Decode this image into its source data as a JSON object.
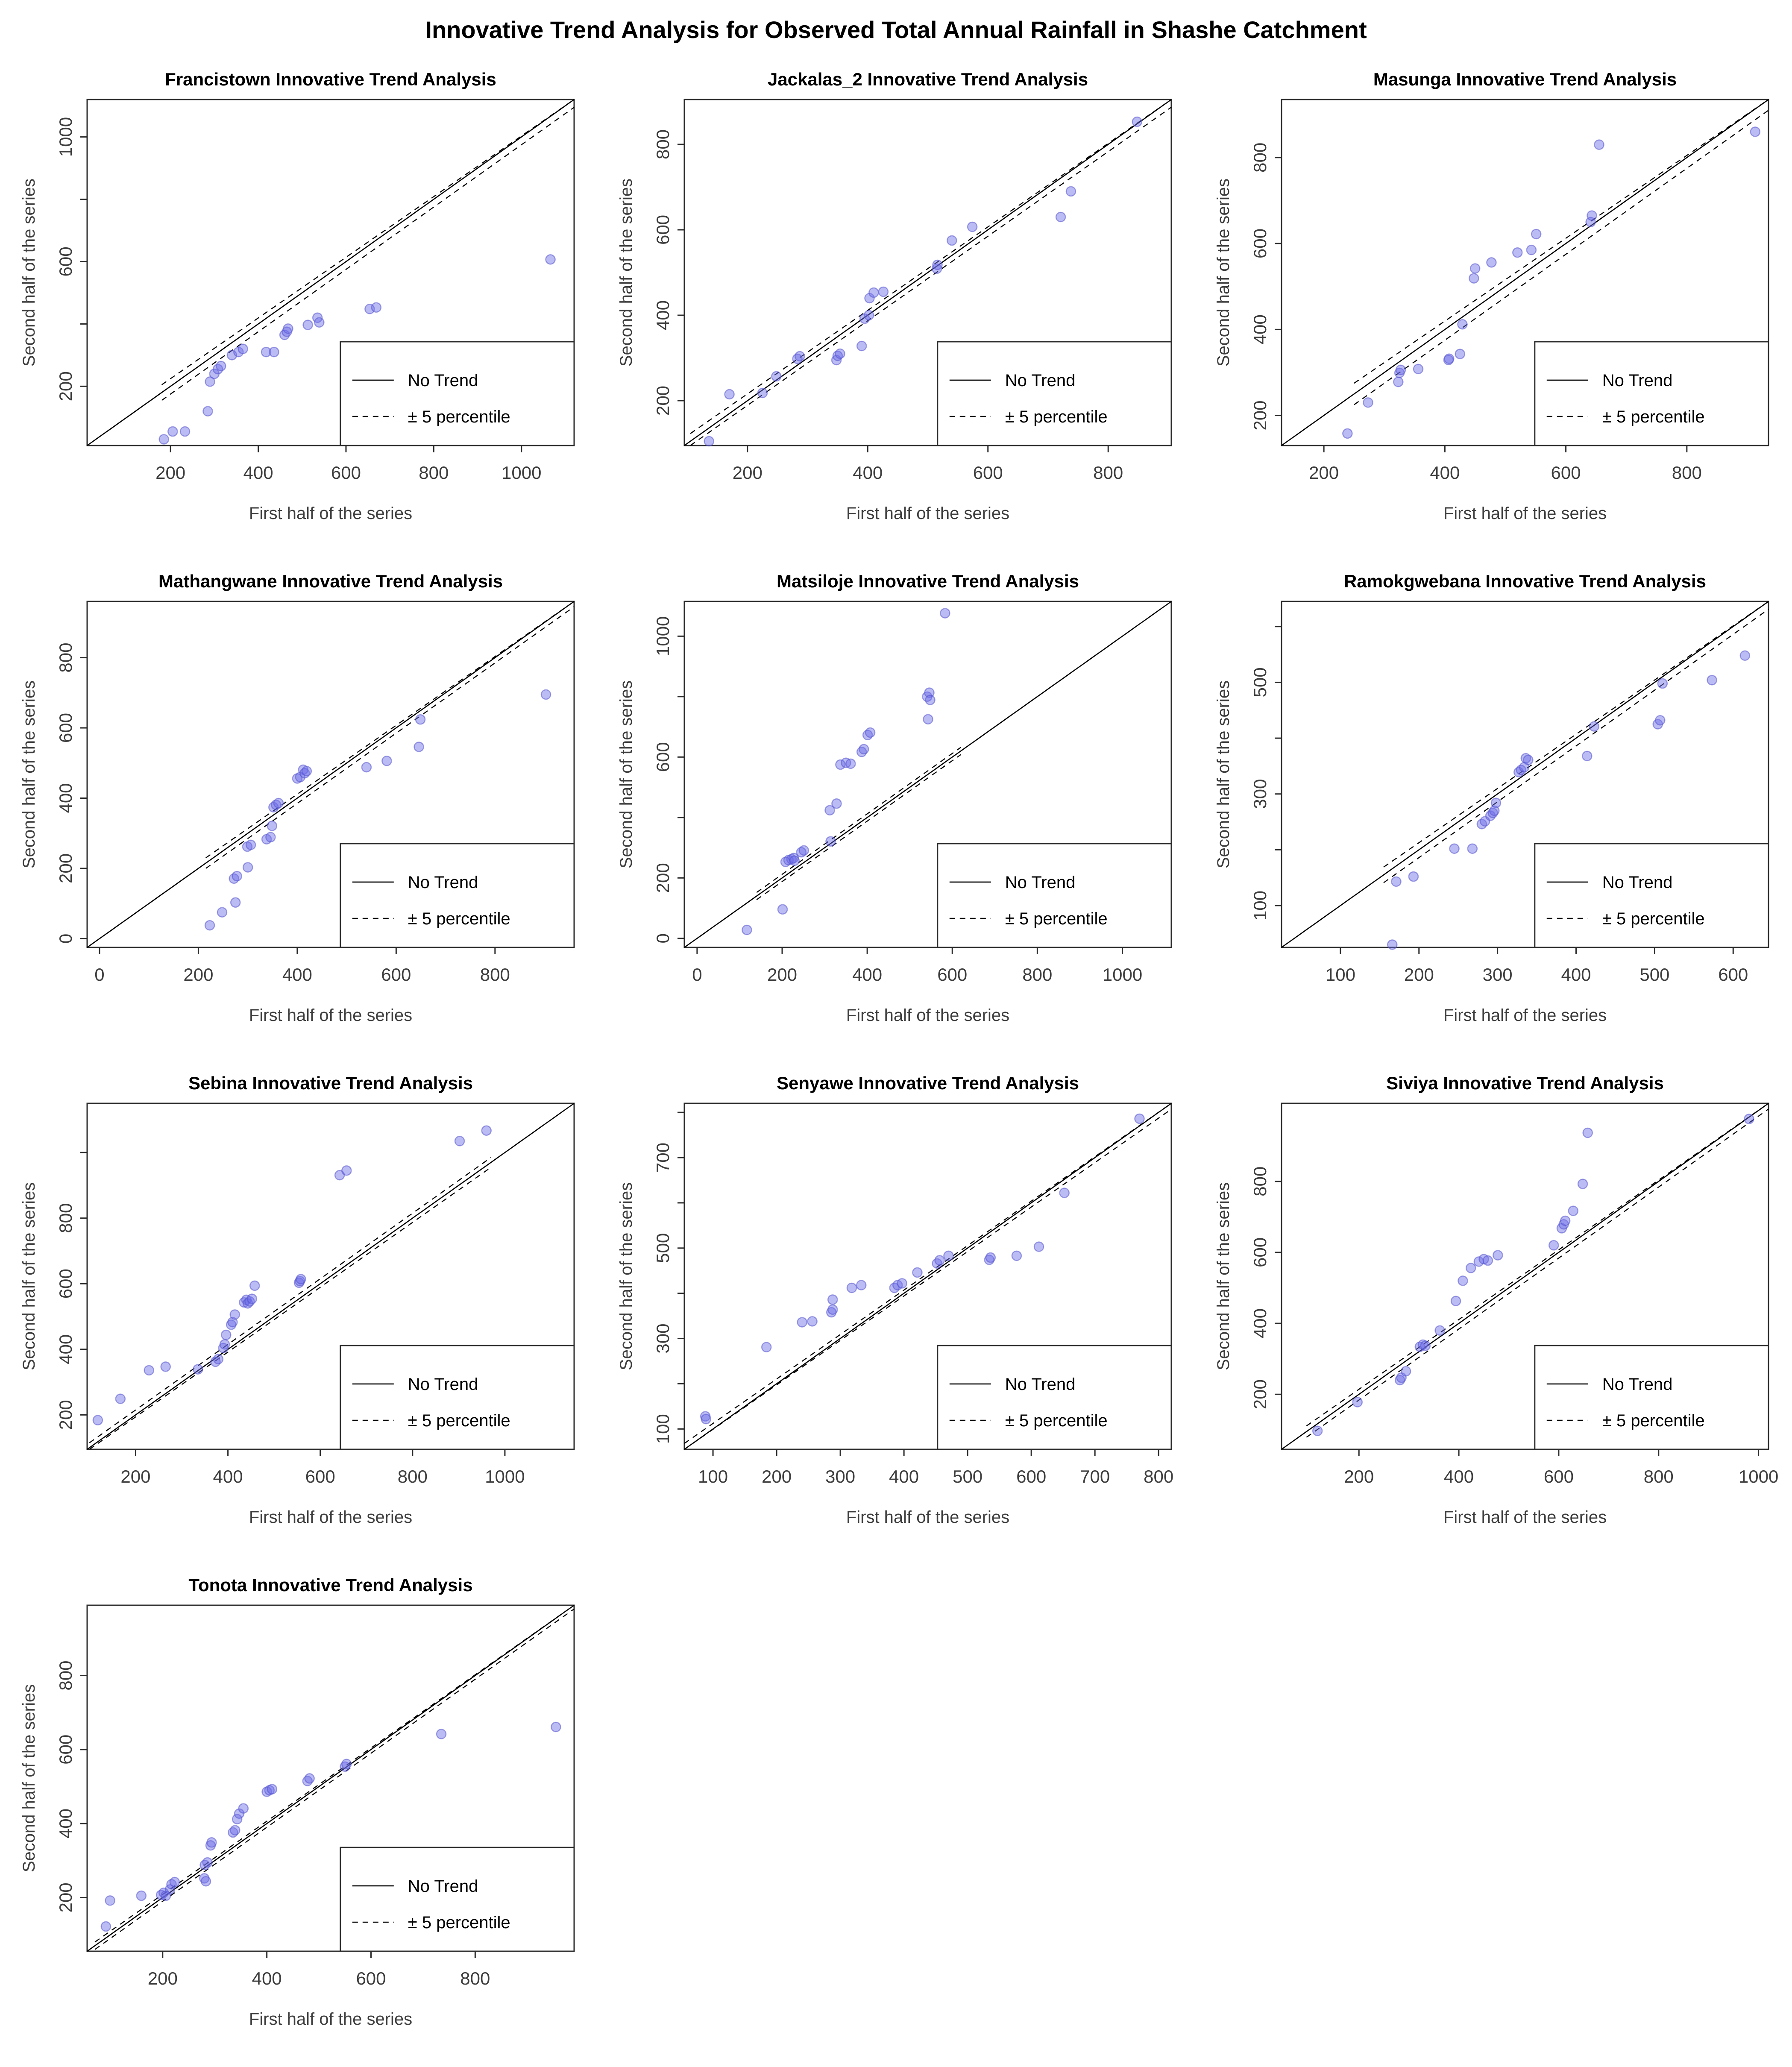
{
  "figure_title": "Innovative Trend Analysis for Observed Total Annual Rainfall in Shashe Catchment",
  "axis": {
    "xlabel": "First half of the series",
    "ylabel": "Second half of the series"
  },
  "legend": {
    "no_trend_label": "No Trend",
    "percentile_label": "± 5 percentile"
  },
  "colors": {
    "point_fill": "#6b6be6",
    "point_stroke": "#5353cf",
    "line": "#000000",
    "box": "#2b2b2b",
    "tick_text": "#3d3d3d",
    "title_text": "#000000",
    "background": "#ffffff"
  },
  "chart_data": [
    {
      "type": "scatter",
      "station": "francistown",
      "title": "Francistown Innovative Trend Analysis",
      "xlabel": "First half of the series",
      "ylabel": "Second half of the series",
      "lim": [
        10,
        1120
      ],
      "xticks": [
        200,
        400,
        600,
        800,
        1000
      ],
      "yticks": [
        200,
        600,
        1000
      ],
      "yticks_minor": [
        400,
        800
      ],
      "band_offset": 25,
      "band_range": [
        180,
        1120
      ],
      "legend": [
        "No Trend",
        "± 5 percentile"
      ],
      "points": [
        [
          185,
          30
        ],
        [
          205,
          55
        ],
        [
          233,
          55
        ],
        [
          285,
          120
        ],
        [
          290,
          215
        ],
        [
          300,
          240
        ],
        [
          308,
          255
        ],
        [
          315,
          265
        ],
        [
          340,
          300
        ],
        [
          355,
          310
        ],
        [
          365,
          320
        ],
        [
          418,
          310
        ],
        [
          436,
          310
        ],
        [
          460,
          365
        ],
        [
          465,
          375
        ],
        [
          468,
          385
        ],
        [
          513,
          397
        ],
        [
          535,
          420
        ],
        [
          539,
          405
        ],
        [
          654,
          448
        ],
        [
          669,
          453
        ],
        [
          1066,
          607
        ]
      ]
    },
    {
      "type": "scatter",
      "station": "jackalas_2",
      "title": "Jackalas_2 Innovative Trend Analysis",
      "xlabel": "First half of the series",
      "ylabel": "Second half of the series",
      "lim": [
        95,
        905
      ],
      "xticks": [
        200,
        400,
        600,
        800
      ],
      "yticks": [
        200,
        400,
        600,
        800
      ],
      "yticks_minor": [],
      "band_offset": 18,
      "band_range": [
        105,
        905
      ],
      "legend": [
        "No Trend",
        "± 5 percentile"
      ],
      "points": [
        [
          136,
          105
        ],
        [
          170,
          215
        ],
        [
          225,
          218
        ],
        [
          248,
          257
        ],
        [
          283,
          298
        ],
        [
          287,
          304
        ],
        [
          348,
          295
        ],
        [
          350,
          305
        ],
        [
          354,
          310
        ],
        [
          390,
          328
        ],
        [
          395,
          392
        ],
        [
          402,
          400
        ],
        [
          403,
          440
        ],
        [
          410,
          453
        ],
        [
          426,
          455
        ],
        [
          515,
          509
        ],
        [
          516,
          518
        ],
        [
          540,
          575
        ],
        [
          574,
          607
        ],
        [
          721,
          630
        ],
        [
          738,
          690
        ],
        [
          848,
          853
        ]
      ]
    },
    {
      "type": "scatter",
      "station": "masunga",
      "title": "Masunga Innovative Trend Analysis",
      "xlabel": "First half of the series",
      "ylabel": "Second half of the series",
      "lim": [
        130,
        935
      ],
      "xticks": [
        200,
        400,
        600,
        800
      ],
      "yticks": [
        200,
        400,
        600,
        800
      ],
      "yticks_minor": [],
      "band_offset": 25,
      "band_range": [
        250,
        935
      ],
      "legend": [
        "No Trend",
        "± 5 percentile"
      ],
      "points": [
        [
          239,
          158
        ],
        [
          273,
          230
        ],
        [
          323,
          278
        ],
        [
          325,
          299
        ],
        [
          327,
          306
        ],
        [
          356,
          308
        ],
        [
          406,
          329
        ],
        [
          407,
          332
        ],
        [
          425,
          343
        ],
        [
          429,
          412
        ],
        [
          448,
          519
        ],
        [
          450,
          542
        ],
        [
          477,
          556
        ],
        [
          520,
          579
        ],
        [
          543,
          585
        ],
        [
          551,
          622
        ],
        [
          641,
          650
        ],
        [
          643,
          665
        ],
        [
          655,
          830
        ],
        [
          913,
          860
        ]
      ]
    },
    {
      "type": "scatter",
      "station": "mathangwane",
      "title": "Mathangwane Innovative Trend Analysis",
      "xlabel": "First half of the series",
      "ylabel": "Second half of the series",
      "lim": [
        -25,
        960
      ],
      "xticks": [
        0,
        200,
        400,
        600,
        800
      ],
      "yticks": [
        0,
        200,
        400,
        600,
        800
      ],
      "yticks_minor": [],
      "band_offset": 15,
      "band_range": [
        215,
        960
      ],
      "legend": [
        "No Trend",
        "± 5 percentile"
      ],
      "points": [
        [
          223,
          38
        ],
        [
          248,
          75
        ],
        [
          275,
          103
        ],
        [
          272,
          171
        ],
        [
          278,
          178
        ],
        [
          300,
          203
        ],
        [
          299,
          262
        ],
        [
          306,
          267
        ],
        [
          338,
          283
        ],
        [
          346,
          289
        ],
        [
          349,
          321
        ],
        [
          352,
          374
        ],
        [
          357,
          381
        ],
        [
          362,
          386
        ],
        [
          400,
          456
        ],
        [
          406,
          460
        ],
        [
          412,
          481
        ],
        [
          415,
          471
        ],
        [
          419,
          477
        ],
        [
          540,
          488
        ],
        [
          581,
          506
        ],
        [
          646,
          546
        ],
        [
          649,
          624
        ],
        [
          903,
          695
        ]
      ]
    },
    {
      "type": "scatter",
      "station": "matsiloje",
      "title": "Matsiloje Innovative Trend Analysis",
      "xlabel": "First half of the series",
      "ylabel": "Second half of the series",
      "lim": [
        -30,
        1115
      ],
      "xticks": [
        0,
        200,
        400,
        600,
        800,
        1000
      ],
      "yticks": [
        0,
        200,
        600,
        1000
      ],
      "yticks_minor": [
        400,
        800
      ],
      "band_offset": 12,
      "band_range": [
        140,
        620
      ],
      "legend": [
        "No Trend",
        "± 5 percentile"
      ],
      "points": [
        [
          117,
          28
        ],
        [
          201,
          96
        ],
        [
          208,
          253
        ],
        [
          215,
          259
        ],
        [
          222,
          262
        ],
        [
          227,
          266
        ],
        [
          229,
          257
        ],
        [
          245,
          285
        ],
        [
          251,
          291
        ],
        [
          314,
          321
        ],
        [
          312,
          424
        ],
        [
          328,
          446
        ],
        [
          337,
          575
        ],
        [
          350,
          581
        ],
        [
          361,
          578
        ],
        [
          387,
          617
        ],
        [
          392,
          626
        ],
        [
          401,
          673
        ],
        [
          407,
          681
        ],
        [
          543,
          725
        ],
        [
          541,
          800
        ],
        [
          546,
          813
        ],
        [
          548,
          789
        ],
        [
          583,
          1076
        ]
      ]
    },
    {
      "type": "scatter",
      "station": "ramokgwebana",
      "title": "Ramokgwebana Innovative Trend Analysis",
      "xlabel": "First half of the series",
      "ylabel": "Second half of the series",
      "lim": [
        25,
        645
      ],
      "xticks": [
        100,
        200,
        300,
        400,
        500,
        600
      ],
      "yticks": [
        100,
        300,
        500
      ],
      "yticks_minor": [
        200,
        400,
        600
      ],
      "band_offset": 14,
      "band_range": [
        155,
        645
      ],
      "legend": [
        "No Trend",
        "± 5 percentile"
      ],
      "points": [
        [
          166,
          30
        ],
        [
          171,
          143
        ],
        [
          193,
          152
        ],
        [
          245,
          202
        ],
        [
          268,
          202
        ],
        [
          280,
          246
        ],
        [
          284,
          251
        ],
        [
          291,
          261
        ],
        [
          294,
          266
        ],
        [
          296,
          270
        ],
        [
          298,
          284
        ],
        [
          327,
          339
        ],
        [
          330,
          343
        ],
        [
          334,
          348
        ],
        [
          336,
          364
        ],
        [
          339,
          361
        ],
        [
          414,
          368
        ],
        [
          423,
          421
        ],
        [
          504,
          425
        ],
        [
          507,
          432
        ],
        [
          510,
          498
        ],
        [
          573,
          504
        ],
        [
          615,
          548
        ]
      ]
    },
    {
      "type": "scatter",
      "station": "sebina",
      "title": "Sebina Innovative Trend Analysis",
      "xlabel": "First half of the series",
      "ylabel": "Second half of the series",
      "lim": [
        95,
        1150
      ],
      "xticks": [
        200,
        400,
        600,
        800,
        1000
      ],
      "yticks": [
        200,
        400,
        600,
        800
      ],
      "yticks_minor": [
        1000
      ],
      "band_offset": 15,
      "band_range": [
        100,
        970
      ],
      "legend": [
        "No Trend",
        "± 5 percentile"
      ],
      "points": [
        [
          118,
          184
        ],
        [
          167,
          249
        ],
        [
          229,
          336
        ],
        [
          265,
          347
        ],
        [
          335,
          339
        ],
        [
          373,
          362
        ],
        [
          379,
          370
        ],
        [
          390,
          404
        ],
        [
          393,
          415
        ],
        [
          396,
          444
        ],
        [
          407,
          475
        ],
        [
          410,
          483
        ],
        [
          415,
          506
        ],
        [
          435,
          543
        ],
        [
          440,
          551
        ],
        [
          443,
          540
        ],
        [
          447,
          546
        ],
        [
          452,
          554
        ],
        [
          458,
          594
        ],
        [
          554,
          603
        ],
        [
          556,
          608
        ],
        [
          558,
          614
        ],
        [
          642,
          931
        ],
        [
          657,
          945
        ],
        [
          902,
          1035
        ],
        [
          960,
          1067
        ]
      ]
    },
    {
      "type": "scatter",
      "station": "senyawe",
      "title": "Senyawe Innovative Trend Analysis",
      "xlabel": "First half of the series",
      "ylabel": "Second half of the series",
      "lim": [
        55,
        820
      ],
      "xticks": [
        100,
        200,
        300,
        400,
        500,
        600,
        700,
        800
      ],
      "yticks": [
        100,
        300,
        500,
        700
      ],
      "yticks_minor": [
        200,
        400,
        600,
        800
      ],
      "band_offset": 13,
      "band_range": [
        55,
        820
      ],
      "legend": [
        "No Trend",
        "± 5 percentile"
      ],
      "points": [
        [
          88,
          128
        ],
        [
          89,
          122
        ],
        [
          184,
          281
        ],
        [
          240,
          336
        ],
        [
          256,
          338
        ],
        [
          286,
          358
        ],
        [
          288,
          364
        ],
        [
          288,
          386
        ],
        [
          318,
          412
        ],
        [
          333,
          418
        ],
        [
          385,
          412
        ],
        [
          390,
          418
        ],
        [
          397,
          422
        ],
        [
          421,
          446
        ],
        [
          452,
          466
        ],
        [
          456,
          473
        ],
        [
          470,
          483
        ],
        [
          534,
          474
        ],
        [
          536,
          479
        ],
        [
          577,
          483
        ],
        [
          612,
          503
        ],
        [
          652,
          622
        ],
        [
          770,
          786
        ]
      ]
    },
    {
      "type": "scatter",
      "station": "siviya",
      "title": "Siviya Innovative Trend Analysis",
      "xlabel": "First half of the series",
      "ylabel": "Second half of the series",
      "lim": [
        45,
        1020
      ],
      "xticks": [
        200,
        400,
        600,
        800,
        1000
      ],
      "yticks": [
        200,
        400,
        600,
        800
      ],
      "yticks_minor": [],
      "band_offset": 16,
      "band_range": [
        95,
        1020
      ],
      "legend": [
        "No Trend",
        "± 5 percentile"
      ],
      "points": [
        [
          117,
          97
        ],
        [
          197,
          178
        ],
        [
          282,
          240
        ],
        [
          285,
          247
        ],
        [
          294,
          265
        ],
        [
          322,
          334
        ],
        [
          328,
          340
        ],
        [
          333,
          337
        ],
        [
          362,
          380
        ],
        [
          394,
          463
        ],
        [
          408,
          520
        ],
        [
          424,
          556
        ],
        [
          440,
          574
        ],
        [
          450,
          581
        ],
        [
          458,
          577
        ],
        [
          478,
          592
        ],
        [
          590,
          620
        ],
        [
          606,
          668
        ],
        [
          610,
          679
        ],
        [
          613,
          689
        ],
        [
          629,
          717
        ],
        [
          648,
          793
        ],
        [
          658,
          937
        ],
        [
          981,
          976
        ]
      ]
    },
    {
      "type": "scatter",
      "station": "tonota",
      "title": "Tonota Innovative Trend Analysis",
      "xlabel": "First half of the series",
      "ylabel": "Second half of the series",
      "lim": [
        55,
        990
      ],
      "xticks": [
        200,
        400,
        600,
        800
      ],
      "yticks": [
        200,
        400,
        600,
        800
      ],
      "yticks_minor": [],
      "band_offset": 10,
      "band_range": [
        70,
        990
      ],
      "legend": [
        "No Trend",
        "± 5 percentile"
      ],
      "points": [
        [
          91,
          122
        ],
        [
          99,
          192
        ],
        [
          159,
          205
        ],
        [
          197,
          207
        ],
        [
          202,
          213
        ],
        [
          206,
          205
        ],
        [
          214,
          222
        ],
        [
          217,
          236
        ],
        [
          223,
          242
        ],
        [
          280,
          252
        ],
        [
          283,
          244
        ],
        [
          281,
          288
        ],
        [
          286,
          295
        ],
        [
          292,
          341
        ],
        [
          294,
          349
        ],
        [
          335,
          376
        ],
        [
          339,
          382
        ],
        [
          343,
          412
        ],
        [
          347,
          427
        ],
        [
          355,
          441
        ],
        [
          400,
          486
        ],
        [
          405,
          490
        ],
        [
          410,
          493
        ],
        [
          478,
          515
        ],
        [
          482,
          522
        ],
        [
          550,
          554
        ],
        [
          553,
          561
        ],
        [
          735,
          642
        ],
        [
          955,
          661
        ]
      ]
    }
  ]
}
